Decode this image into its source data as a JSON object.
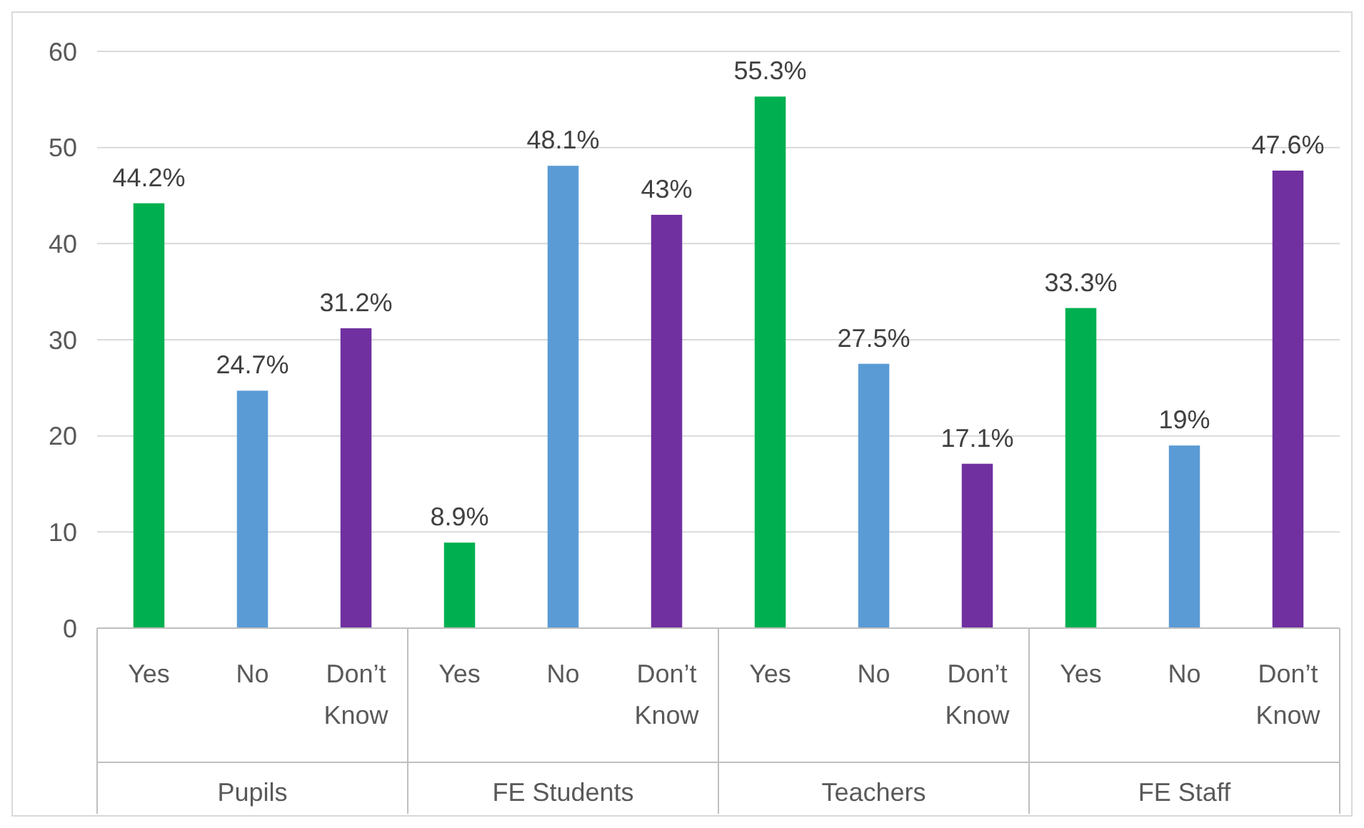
{
  "chart_data": {
    "type": "bar",
    "categories": [
      "Pupils",
      "FE Students",
      "Teachers",
      "FE Staff"
    ],
    "series": [
      {
        "name": "Yes",
        "color": "#00b050",
        "values": [
          44.2,
          8.9,
          55.3,
          33.3
        ],
        "value_labels": [
          "44.2%",
          "8.9%",
          "55.3%",
          "33.3%"
        ]
      },
      {
        "name": "No",
        "color": "#5b9bd5",
        "values": [
          24.7,
          48.1,
          27.5,
          19
        ],
        "value_labels": [
          "24.7%",
          "48.1%",
          "27.5%",
          "19%"
        ]
      },
      {
        "name": "Don’t Know",
        "color": "#7030a0",
        "values": [
          31.2,
          43,
          17.1,
          47.6
        ],
        "value_labels": [
          "31.2%",
          "43%",
          "17.1%",
          "47.6%"
        ]
      }
    ],
    "ylim": [
      0,
      60
    ],
    "yticks": [
      0,
      10,
      20,
      30,
      40,
      50,
      60
    ],
    "grid": "y",
    "legend": false
  }
}
